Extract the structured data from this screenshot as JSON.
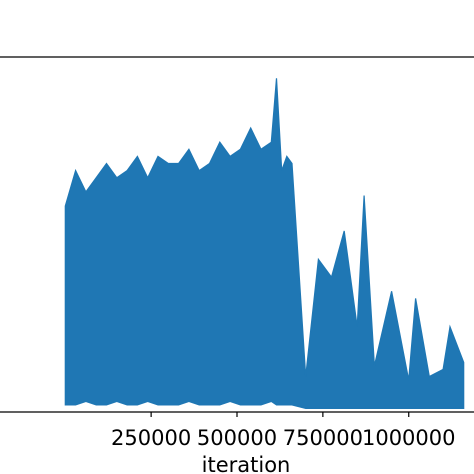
{
  "chart_data": {
    "type": "line",
    "title": "",
    "xlabel": "iteration",
    "ylabel": "",
    "grid": false,
    "xlim": [
      -190000,
      1190000
    ],
    "ylim": [
      0,
      1
    ],
    "x_ticks": [
      250000,
      500000,
      750000,
      1000000
    ],
    "x_tick_labels": [
      "250000",
      "500000",
      "750000",
      "1000000"
    ],
    "series_color": "#1f77b4",
    "series": [
      {
        "x": [
          0,
          30000,
          60000,
          90000,
          120000,
          150000,
          180000,
          210000,
          240000,
          270000,
          300000,
          330000,
          360000,
          390000,
          420000,
          450000,
          480000,
          510000,
          540000,
          570000,
          600000,
          615000,
          630000,
          645000,
          660000,
          700000,
          737000,
          775000,
          812000,
          850000,
          870000,
          900000,
          950000,
          1000000,
          1020000,
          1060000,
          1100000,
          1120000,
          1160000
        ],
        "upper": [
          0.58,
          0.68,
          0.62,
          0.66,
          0.7,
          0.66,
          0.68,
          0.72,
          0.66,
          0.72,
          0.7,
          0.7,
          0.74,
          0.68,
          0.7,
          0.76,
          0.72,
          0.74,
          0.8,
          0.74,
          0.76,
          0.94,
          0.68,
          0.72,
          0.7,
          0.1,
          0.43,
          0.38,
          0.51,
          0.24,
          0.61,
          0.13,
          0.34,
          0.09,
          0.32,
          0.1,
          0.12,
          0.24,
          0.14
        ],
        "lower": [
          0.02,
          0.02,
          0.03,
          0.02,
          0.02,
          0.03,
          0.02,
          0.02,
          0.03,
          0.02,
          0.02,
          0.02,
          0.03,
          0.02,
          0.02,
          0.02,
          0.03,
          0.02,
          0.02,
          0.02,
          0.03,
          0.02,
          0.02,
          0.02,
          0.02,
          0.01,
          0.01,
          0.01,
          0.01,
          0.01,
          0.01,
          0.01,
          0.01,
          0.01,
          0.01,
          0.01,
          0.01,
          0.01,
          0.01
        ]
      }
    ]
  }
}
